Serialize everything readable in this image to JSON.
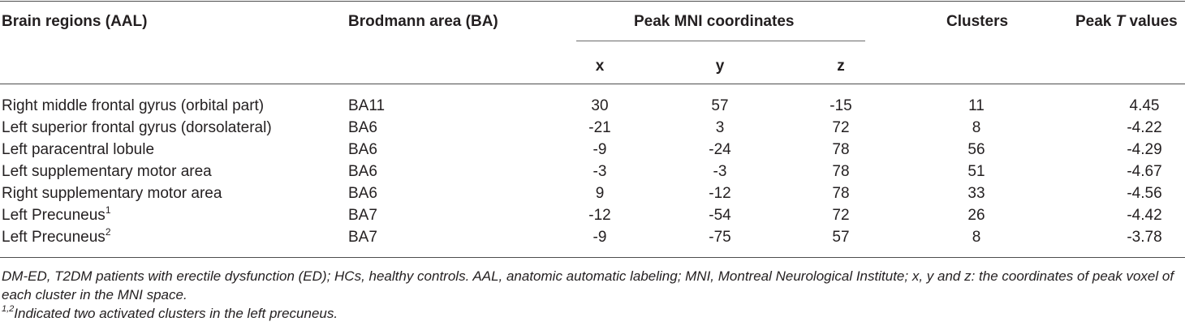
{
  "header": {
    "region": "Brain regions (AAL)",
    "ba": "Brodmann area (BA)",
    "mni": "Peak MNI coordinates",
    "clusters": "Clusters",
    "peak_prefix": "Peak ",
    "peak_italic": "T",
    "peak_suffix": " values",
    "x": "x",
    "y": "y",
    "z": "z"
  },
  "rows": [
    {
      "region": "Right middle frontal gyrus (orbital part)",
      "sup": "",
      "ba": "BA11",
      "x": "30",
      "y": "57",
      "z": "-15",
      "clusters": "11",
      "t": "4.45"
    },
    {
      "region": "Left superior frontal gyrus (dorsolateral)",
      "sup": "",
      "ba": "BA6",
      "x": "-21",
      "y": "3",
      "z": "72",
      "clusters": "8",
      "t": "-4.22"
    },
    {
      "region": "Left paracentral lobule",
      "sup": "",
      "ba": "BA6",
      "x": "-9",
      "y": "-24",
      "z": "78",
      "clusters": "56",
      "t": "-4.29"
    },
    {
      "region": "Left supplementary motor area",
      "sup": "",
      "ba": "BA6",
      "x": "-3",
      "y": "-3",
      "z": "78",
      "clusters": "51",
      "t": "-4.67"
    },
    {
      "region": "Right supplementary motor area",
      "sup": "",
      "ba": "BA6",
      "x": "9",
      "y": "-12",
      "z": "78",
      "clusters": "33",
      "t": "-4.56"
    },
    {
      "region": "Left Precuneus",
      "sup": "1",
      "ba": "BA7",
      "x": "-12",
      "y": "-54",
      "z": "72",
      "clusters": "26",
      "t": "-4.42"
    },
    {
      "region": "Left Precuneus",
      "sup": "2",
      "ba": "BA7",
      "x": "-9",
      "y": "-75",
      "z": "57",
      "clusters": "8",
      "t": "-3.78"
    }
  ],
  "notes": {
    "line1": "DM-ED, T2DM patients with erectile dysfunction (ED); HCs, healthy controls. AAL, anatomic automatic labeling; MNI, Montreal Neurological Institute; x, y and z: the coordinates of peak voxel of each cluster in the MNI space.",
    "sup": "1,2",
    "line2": "Indicated two activated clusters in the left precuneus."
  }
}
